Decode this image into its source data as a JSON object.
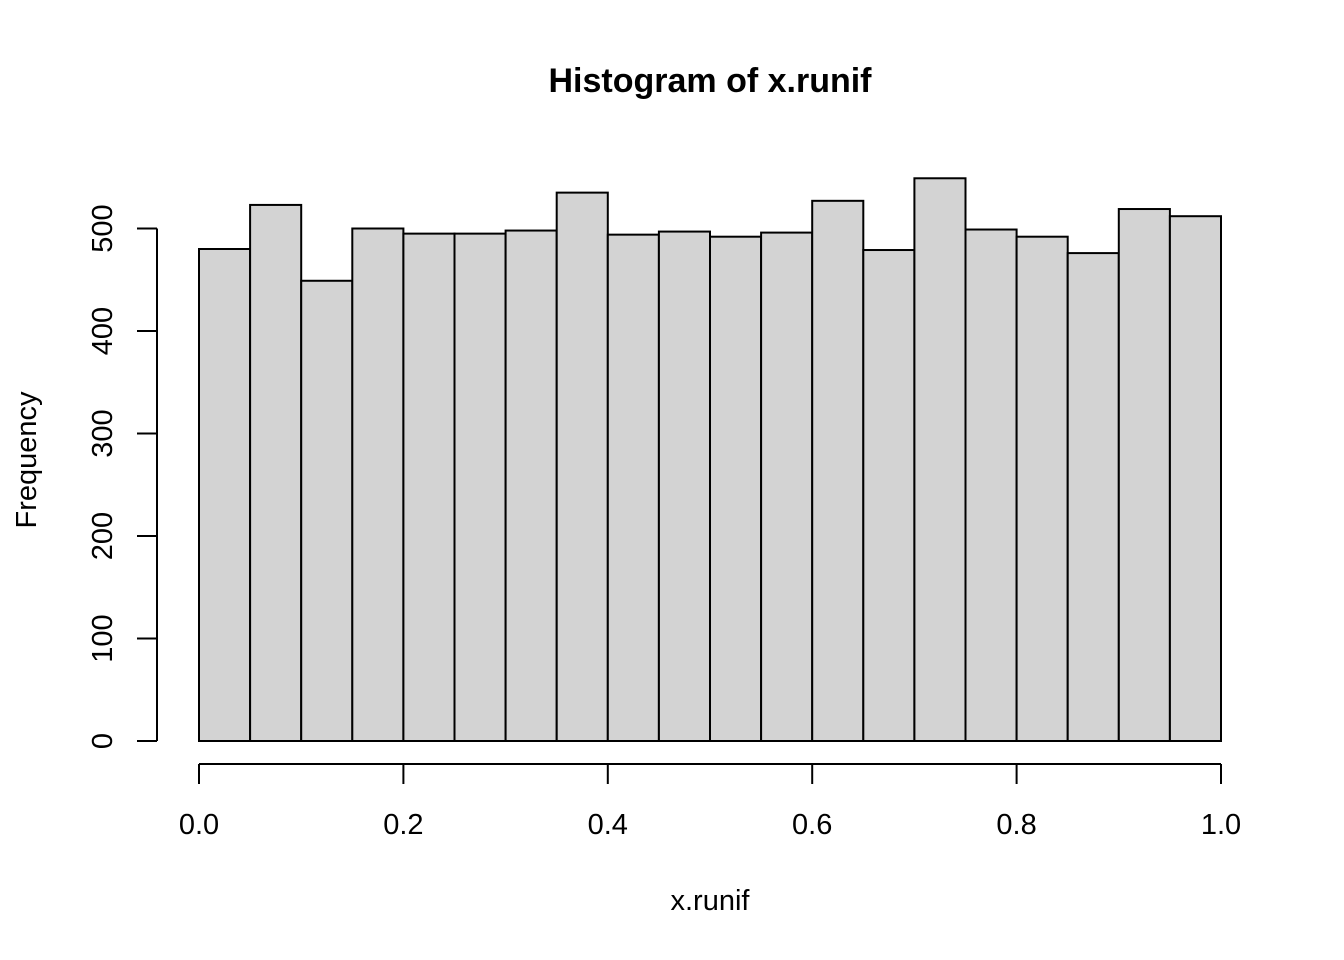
{
  "chart_data": {
    "type": "bar",
    "title": "Histogram of x.runif",
    "xlabel": "x.runif",
    "ylabel": "Frequency",
    "bins": [
      {
        "start": 0.0,
        "end": 0.05,
        "count": 480
      },
      {
        "start": 0.05,
        "end": 0.1,
        "count": 523
      },
      {
        "start": 0.1,
        "end": 0.15,
        "count": 449
      },
      {
        "start": 0.15,
        "end": 0.2,
        "count": 500
      },
      {
        "start": 0.2,
        "end": 0.25,
        "count": 495
      },
      {
        "start": 0.25,
        "end": 0.3,
        "count": 495
      },
      {
        "start": 0.3,
        "end": 0.35,
        "count": 498
      },
      {
        "start": 0.35,
        "end": 0.4,
        "count": 535
      },
      {
        "start": 0.4,
        "end": 0.45,
        "count": 494
      },
      {
        "start": 0.45,
        "end": 0.5,
        "count": 497
      },
      {
        "start": 0.5,
        "end": 0.55,
        "count": 492
      },
      {
        "start": 0.55,
        "end": 0.6,
        "count": 496
      },
      {
        "start": 0.6,
        "end": 0.65,
        "count": 527
      },
      {
        "start": 0.65,
        "end": 0.7,
        "count": 479
      },
      {
        "start": 0.7,
        "end": 0.75,
        "count": 549
      },
      {
        "start": 0.75,
        "end": 0.8,
        "count": 499
      },
      {
        "start": 0.8,
        "end": 0.85,
        "count": 492
      },
      {
        "start": 0.85,
        "end": 0.9,
        "count": 476
      },
      {
        "start": 0.9,
        "end": 0.95,
        "count": 519
      },
      {
        "start": 0.95,
        "end": 1.0,
        "count": 512
      }
    ],
    "xlim": [
      0,
      1
    ],
    "ylim": [
      0,
      549
    ],
    "x_ticks": [
      0.0,
      0.2,
      0.4,
      0.6,
      0.8,
      1.0
    ],
    "x_tick_labels": [
      "0.0",
      "0.2",
      "0.4",
      "0.6",
      "0.8",
      "1.0"
    ],
    "y_ticks": [
      0,
      100,
      200,
      300,
      400,
      500
    ],
    "y_tick_labels": [
      "0",
      "100",
      "200",
      "300",
      "400",
      "500"
    ],
    "grid": false,
    "bar_color": "#d3d3d3",
    "edge_color": "#000000"
  }
}
